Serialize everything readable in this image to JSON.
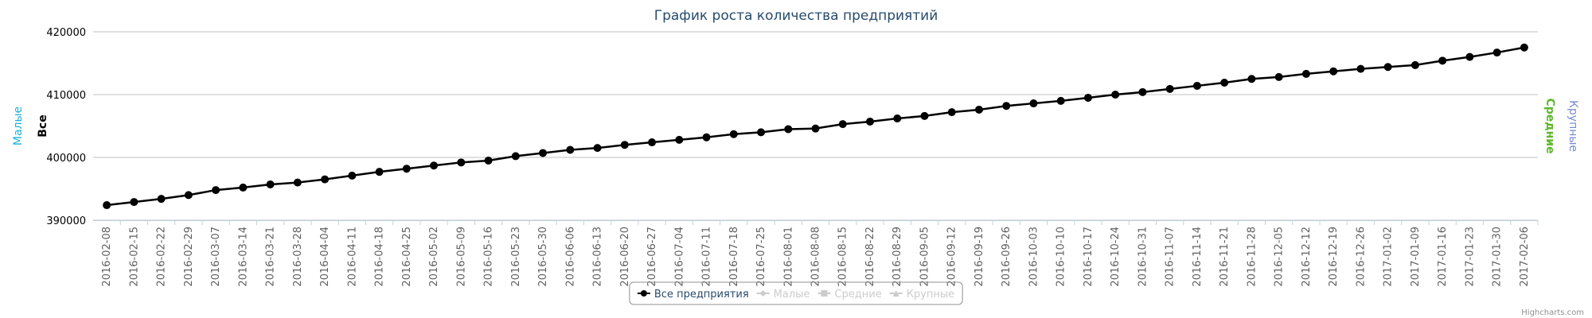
{
  "chart_data": {
    "type": "line",
    "title": "График роста количества предприятий",
    "categories": [
      "2016-02-08",
      "2016-02-15",
      "2016-02-22",
      "2016-02-29",
      "2016-03-07",
      "2016-03-14",
      "2016-03-21",
      "2016-03-28",
      "2016-04-04",
      "2016-04-11",
      "2016-04-18",
      "2016-04-25",
      "2016-05-02",
      "2016-05-09",
      "2016-05-16",
      "2016-05-23",
      "2016-05-30",
      "2016-06-06",
      "2016-06-13",
      "2016-06-20",
      "2016-06-27",
      "2016-07-04",
      "2016-07-11",
      "2016-07-18",
      "2016-07-25",
      "2016-08-01",
      "2016-08-08",
      "2016-08-15",
      "2016-08-22",
      "2016-08-29",
      "2016-09-05",
      "2016-09-12",
      "2016-09-19",
      "2016-09-26",
      "2016-10-03",
      "2016-10-10",
      "2016-10-17",
      "2016-10-24",
      "2016-10-31",
      "2016-11-07",
      "2016-11-14",
      "2016-11-21",
      "2016-11-28",
      "2016-12-05",
      "2016-12-12",
      "2016-12-19",
      "2016-12-26",
      "2017-01-02",
      "2017-01-09",
      "2017-01-16",
      "2017-01-23",
      "2017-01-30",
      "2017-02-06"
    ],
    "series": [
      {
        "name": "Все предприятия",
        "color": "#000000",
        "marker": "circle",
        "visible": true,
        "values": [
          392400,
          392900,
          393400,
          394000,
          394800,
          395200,
          395700,
          396000,
          396500,
          397100,
          397700,
          398200,
          398700,
          399200,
          399500,
          400200,
          400700,
          401200,
          401500,
          402000,
          402400,
          402800,
          403200,
          403700,
          404000,
          404500,
          404600,
          405300,
          405700,
          406200,
          406600,
          407200,
          407600,
          408200,
          408600,
          409000,
          409500,
          410000,
          410400,
          410900,
          411400,
          411900,
          412500,
          412800,
          413300,
          413700,
          414100,
          414400,
          414700,
          415400,
          416000,
          416700,
          417500
        ]
      },
      {
        "name": "Малые",
        "color": "#1ab1d8",
        "marker": "diamond",
        "visible": false
      },
      {
        "name": "Средние",
        "color": "#5cb82a",
        "marker": "square",
        "visible": false
      },
      {
        "name": "Крупные",
        "color": "#7a8bd0",
        "marker": "triangle",
        "visible": false
      }
    ],
    "axes": [
      {
        "title": "Малые",
        "color": "#1ab1d8",
        "side": "left"
      },
      {
        "title": "Все",
        "color": "#000000",
        "side": "left",
        "bold": true
      },
      {
        "title": "Средние",
        "color": "#5cb82a",
        "side": "right",
        "bold": true
      },
      {
        "title": "Крупные",
        "color": "#7a8bd0",
        "side": "right"
      }
    ],
    "ylim": [
      390000,
      420000
    ],
    "yticks": [
      390000,
      400000,
      410000,
      420000
    ],
    "grid": true,
    "legend": "bottom",
    "credits": "Highcharts.com"
  }
}
